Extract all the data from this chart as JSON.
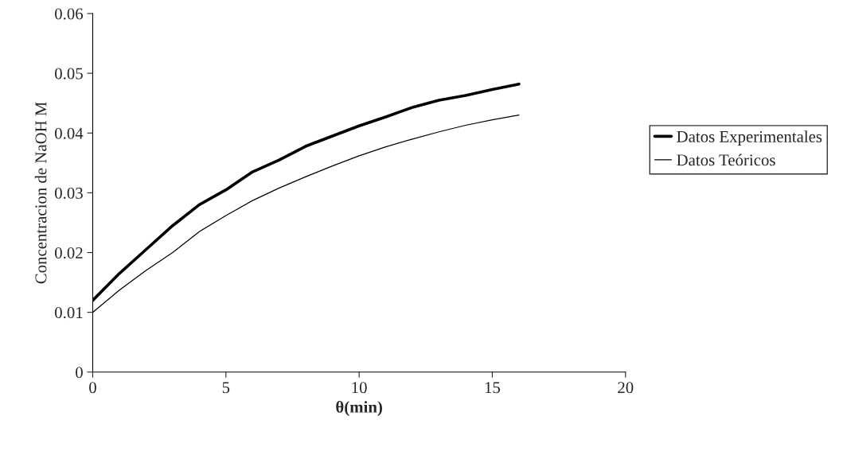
{
  "chart_data": {
    "type": "line",
    "xlabel": "θ(min)",
    "ylabel": "Concentracion de NaOH M",
    "x": [
      0,
      1,
      2,
      3,
      4,
      5,
      6,
      7,
      8,
      9,
      10,
      11,
      12,
      13,
      14,
      15,
      16
    ],
    "series": [
      {
        "name": "Datos Experimentales",
        "color": "#000000",
        "values": [
          0.012,
          0.0165,
          0.0205,
          0.0245,
          0.028,
          0.0305,
          0.0335,
          0.0355,
          0.0378,
          0.0395,
          0.0412,
          0.0427,
          0.0443,
          0.0455,
          0.0463,
          0.0473,
          0.0482
        ]
      },
      {
        "name": "Datos Teóricos",
        "color": "#000000",
        "values": [
          0.01,
          0.0137,
          0.017,
          0.02,
          0.0235,
          0.0262,
          0.0287,
          0.0308,
          0.0327,
          0.0345,
          0.0362,
          0.0377,
          0.039,
          0.0402,
          0.0413,
          0.0422,
          0.043
        ]
      }
    ],
    "xlim": [
      0,
      20
    ],
    "xticks": [
      0,
      5,
      10,
      15,
      20
    ],
    "ylim": [
      0,
      0.06
    ],
    "yticks": [
      0,
      0.01,
      0.02,
      0.03,
      0.04,
      0.05,
      0.06
    ],
    "grid": false,
    "legend": "right",
    "marker": "none",
    "line_style": "solid"
  }
}
